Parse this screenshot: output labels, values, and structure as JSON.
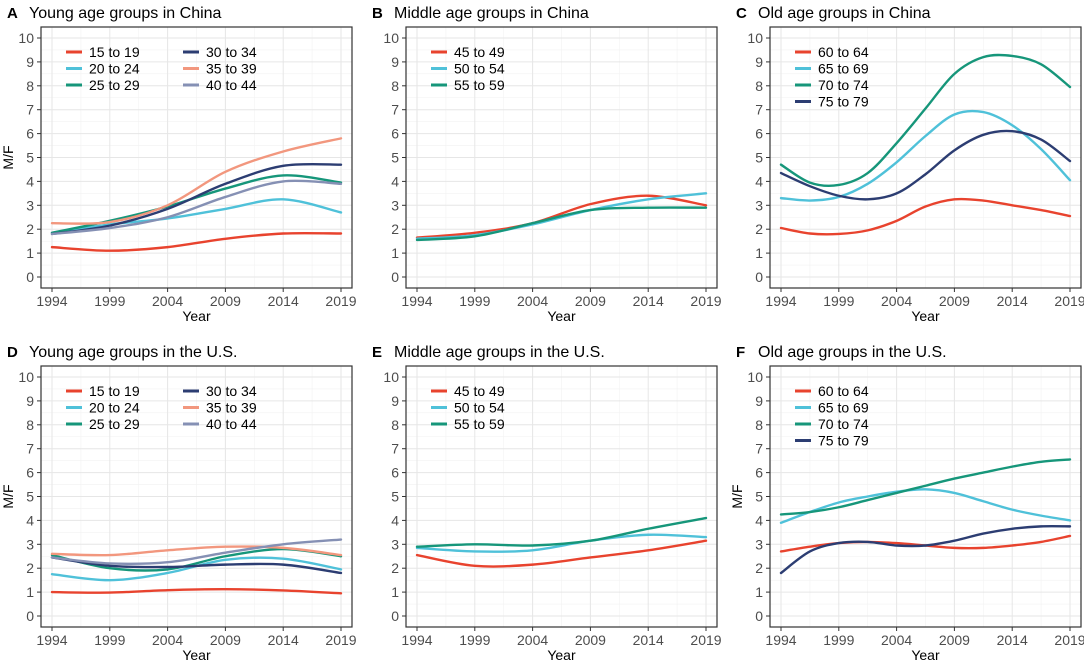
{
  "chart_data": [
    {
      "type": "line",
      "panel": "A",
      "title": "Young age groups in China",
      "xlabel": "Year",
      "ylabel": "M/F",
      "xticks": [
        "1994",
        "1999",
        "2004",
        "2009",
        "2014",
        "2019"
      ],
      "yticks": [
        "0",
        "1",
        "2",
        "3",
        "4",
        "5",
        "6",
        "7",
        "8",
        "9",
        "10"
      ],
      "xlim": [
        1994,
        2019
      ],
      "ylim": [
        0,
        10
      ],
      "grid": true,
      "legend_position": "top-left",
      "legend_columns": 2,
      "series": [
        {
          "name": "15 to 19",
          "color": "#e8432e",
          "x": [
            1994,
            1999,
            2004,
            2009,
            2014,
            2019
          ],
          "y": [
            1.25,
            1.1,
            1.25,
            1.6,
            1.82,
            1.82
          ]
        },
        {
          "name": "20 to 24",
          "color": "#4fc1d9",
          "x": [
            1994,
            1999,
            2004,
            2009,
            2014,
            2019
          ],
          "y": [
            1.85,
            2.2,
            2.45,
            2.85,
            3.25,
            2.7
          ]
        },
        {
          "name": "25 to 29",
          "color": "#16967a",
          "x": [
            1994,
            1999,
            2004,
            2009,
            2014,
            2019
          ],
          "y": [
            1.85,
            2.35,
            2.95,
            3.7,
            4.25,
            3.95
          ]
        },
        {
          "name": "30 to 34",
          "color": "#2c3d72",
          "x": [
            1994,
            1999,
            2004,
            2009,
            2014,
            2019
          ],
          "y": [
            1.8,
            2.15,
            2.85,
            3.9,
            4.65,
            4.7
          ]
        },
        {
          "name": "35 to 39",
          "color": "#f2977e",
          "x": [
            1994,
            1999,
            2004,
            2009,
            2014,
            2019
          ],
          "y": [
            2.25,
            2.3,
            3.0,
            4.4,
            5.25,
            5.8
          ]
        },
        {
          "name": "40 to 44",
          "color": "#8590b4",
          "x": [
            1994,
            1999,
            2004,
            2009,
            2014,
            2019
          ],
          "y": [
            1.8,
            2.05,
            2.5,
            3.35,
            4.0,
            3.9
          ]
        }
      ]
    },
    {
      "type": "line",
      "panel": "B",
      "title": "Middle age groups in China",
      "xlabel": "Year",
      "ylabel": "",
      "xticks": [
        "1994",
        "1999",
        "2004",
        "2009",
        "2014",
        "2019"
      ],
      "yticks": [
        "0",
        "1",
        "2",
        "3",
        "4",
        "5",
        "6",
        "7",
        "8",
        "9",
        "10"
      ],
      "xlim": [
        1994,
        2019
      ],
      "ylim": [
        0,
        10
      ],
      "grid": true,
      "legend_position": "top-left",
      "legend_columns": 1,
      "series": [
        {
          "name": "45 to 49",
          "color": "#e8432e",
          "x": [
            1994,
            1999,
            2004,
            2009,
            2014,
            2019
          ],
          "y": [
            1.65,
            1.85,
            2.25,
            3.05,
            3.4,
            3.0
          ]
        },
        {
          "name": "50 to 54",
          "color": "#4fc1d9",
          "x": [
            1994,
            1999,
            2004,
            2009,
            2014,
            2019
          ],
          "y": [
            1.6,
            1.75,
            2.2,
            2.8,
            3.25,
            3.5
          ]
        },
        {
          "name": "55 to 59",
          "color": "#16967a",
          "x": [
            1994,
            1999,
            2004,
            2009,
            2014,
            2019
          ],
          "y": [
            1.55,
            1.7,
            2.25,
            2.8,
            2.9,
            2.9
          ]
        }
      ]
    },
    {
      "type": "line",
      "panel": "C",
      "title": "Old age groups in China",
      "xlabel": "Year",
      "ylabel": "",
      "xticks": [
        "1994",
        "1999",
        "2004",
        "2009",
        "2014",
        "2019"
      ],
      "yticks": [
        "0",
        "1",
        "2",
        "3",
        "4",
        "5",
        "6",
        "7",
        "8",
        "9",
        "10"
      ],
      "xlim": [
        1994,
        2019
      ],
      "ylim": [
        0,
        10
      ],
      "grid": true,
      "legend_position": "top-left",
      "legend_columns": 1,
      "series": [
        {
          "name": "60 to 64",
          "color": "#e8432e",
          "x": [
            1994,
            1996.5,
            1999,
            2001.5,
            2004,
            2006.5,
            2009,
            2011.5,
            2014,
            2016.5,
            2019
          ],
          "y": [
            2.05,
            1.82,
            1.8,
            1.95,
            2.35,
            2.95,
            3.25,
            3.2,
            3.0,
            2.8,
            2.55
          ]
        },
        {
          "name": "65 to 69",
          "color": "#4fc1d9",
          "x": [
            1994,
            1996.5,
            1999,
            2001.5,
            2004,
            2006.5,
            2009,
            2011.5,
            2014,
            2016.5,
            2019
          ],
          "y": [
            3.3,
            3.2,
            3.35,
            3.9,
            4.8,
            5.9,
            6.8,
            6.9,
            6.35,
            5.35,
            4.05
          ]
        },
        {
          "name": "70 to 74",
          "color": "#16967a",
          "x": [
            1994,
            1996.5,
            1999,
            2001.5,
            2004,
            2006.5,
            2009,
            2011.5,
            2014,
            2016.5,
            2019
          ],
          "y": [
            4.7,
            3.95,
            3.85,
            4.35,
            5.6,
            7.05,
            8.5,
            9.2,
            9.25,
            8.9,
            7.95
          ]
        },
        {
          "name": "75 to 79",
          "color": "#2c3d72",
          "x": [
            1994,
            1996.5,
            1999,
            2001.5,
            2004,
            2006.5,
            2009,
            2011.5,
            2014,
            2016.5,
            2019
          ],
          "y": [
            4.35,
            3.8,
            3.4,
            3.25,
            3.5,
            4.3,
            5.3,
            5.95,
            6.1,
            5.75,
            4.85
          ]
        }
      ]
    },
    {
      "type": "line",
      "panel": "D",
      "title": "Young age groups in the U.S.",
      "xlabel": "Year",
      "ylabel": "M/F",
      "xticks": [
        "1994",
        "1999",
        "2004",
        "2009",
        "2014",
        "2019"
      ],
      "yticks": [
        "0",
        "1",
        "2",
        "3",
        "4",
        "5",
        "6",
        "7",
        "8",
        "9",
        "10"
      ],
      "xlim": [
        1994,
        2019
      ],
      "ylim": [
        0,
        10
      ],
      "grid": true,
      "legend_position": "top-left",
      "legend_columns": 2,
      "series": [
        {
          "name": "15 to 19",
          "color": "#e8432e",
          "x": [
            1994,
            1999,
            2004,
            2009,
            2014,
            2019
          ],
          "y": [
            1.0,
            0.98,
            1.08,
            1.12,
            1.07,
            0.95
          ]
        },
        {
          "name": "20 to 24",
          "color": "#4fc1d9",
          "x": [
            1994,
            1999,
            2004,
            2009,
            2014,
            2019
          ],
          "y": [
            1.75,
            1.5,
            1.8,
            2.35,
            2.4,
            1.95
          ]
        },
        {
          "name": "25 to 29",
          "color": "#16967a",
          "x": [
            1994,
            1999,
            2004,
            2009,
            2014,
            2019
          ],
          "y": [
            2.55,
            2.0,
            1.95,
            2.5,
            2.8,
            2.5
          ]
        },
        {
          "name": "30 to 34",
          "color": "#2c3d72",
          "x": [
            1994,
            1999,
            2004,
            2009,
            2014,
            2019
          ],
          "y": [
            2.45,
            2.1,
            2.05,
            2.15,
            2.15,
            1.8
          ]
        },
        {
          "name": "35 to 39",
          "color": "#f2977e",
          "x": [
            1994,
            1999,
            2004,
            2009,
            2014,
            2019
          ],
          "y": [
            2.6,
            2.55,
            2.75,
            2.9,
            2.85,
            2.55
          ]
        },
        {
          "name": "40 to 44",
          "color": "#8590b4",
          "x": [
            1994,
            1999,
            2004,
            2009,
            2014,
            2019
          ],
          "y": [
            2.45,
            2.2,
            2.25,
            2.65,
            3.0,
            3.2
          ]
        }
      ]
    },
    {
      "type": "line",
      "panel": "E",
      "title": "Middle age groups in the U.S.",
      "xlabel": "Year",
      "ylabel": "",
      "xticks": [
        "1994",
        "1999",
        "2004",
        "2009",
        "2014",
        "2019"
      ],
      "yticks": [
        "0",
        "1",
        "2",
        "3",
        "4",
        "5",
        "6",
        "7",
        "8",
        "9",
        "10"
      ],
      "xlim": [
        1994,
        2019
      ],
      "ylim": [
        0,
        10
      ],
      "grid": true,
      "legend_position": "top-left",
      "legend_columns": 1,
      "series": [
        {
          "name": "45 to 49",
          "color": "#e8432e",
          "x": [
            1994,
            1999,
            2004,
            2009,
            2014,
            2019
          ],
          "y": [
            2.55,
            2.1,
            2.15,
            2.45,
            2.75,
            3.15
          ]
        },
        {
          "name": "50 to 54",
          "color": "#4fc1d9",
          "x": [
            1994,
            1999,
            2004,
            2009,
            2014,
            2019
          ],
          "y": [
            2.85,
            2.7,
            2.75,
            3.15,
            3.4,
            3.3
          ]
        },
        {
          "name": "55 to 59",
          "color": "#16967a",
          "x": [
            1994,
            1999,
            2004,
            2009,
            2014,
            2019
          ],
          "y": [
            2.9,
            3.0,
            2.95,
            3.15,
            3.65,
            4.1
          ]
        }
      ]
    },
    {
      "type": "line",
      "panel": "F",
      "title": "Old age groups in the U.S.",
      "xlabel": "Year",
      "ylabel": "M/F",
      "xticks": [
        "1994",
        "1999",
        "2004",
        "2009",
        "2014",
        "2019"
      ],
      "yticks": [
        "0",
        "1",
        "2",
        "3",
        "4",
        "5",
        "6",
        "7",
        "8",
        "9",
        "10"
      ],
      "xlim": [
        1994,
        2019
      ],
      "ylim": [
        0,
        10
      ],
      "grid": true,
      "legend_position": "top-left",
      "legend_columns": 1,
      "series": [
        {
          "name": "60 to 64",
          "color": "#e8432e",
          "x": [
            1994,
            1996.5,
            1999,
            2001.5,
            2004,
            2006.5,
            2009,
            2011.5,
            2014,
            2016.5,
            2019
          ],
          "y": [
            2.7,
            2.9,
            3.05,
            3.1,
            3.05,
            2.95,
            2.85,
            2.85,
            2.95,
            3.1,
            3.35
          ]
        },
        {
          "name": "65 to 69",
          "color": "#4fc1d9",
          "x": [
            1994,
            1996.5,
            1999,
            2001.5,
            2004,
            2006.5,
            2009,
            2011.5,
            2014,
            2016.5,
            2019
          ],
          "y": [
            3.9,
            4.35,
            4.75,
            5.0,
            5.2,
            5.3,
            5.15,
            4.8,
            4.45,
            4.2,
            4.0
          ]
        },
        {
          "name": "70 to 74",
          "color": "#16967a",
          "x": [
            1994,
            1996.5,
            1999,
            2001.5,
            2004,
            2006.5,
            2009,
            2011.5,
            2014,
            2016.5,
            2019
          ],
          "y": [
            4.25,
            4.35,
            4.55,
            4.85,
            5.15,
            5.45,
            5.75,
            6.0,
            6.25,
            6.45,
            6.55
          ]
        },
        {
          "name": "75 to 79",
          "color": "#2c3d72",
          "x": [
            1994,
            1996.5,
            1999,
            2001.5,
            2004,
            2006.5,
            2009,
            2011.5,
            2014,
            2016.5,
            2019
          ],
          "y": [
            1.8,
            2.7,
            3.05,
            3.1,
            2.95,
            2.95,
            3.15,
            3.45,
            3.65,
            3.75,
            3.75
          ]
        }
      ]
    }
  ]
}
